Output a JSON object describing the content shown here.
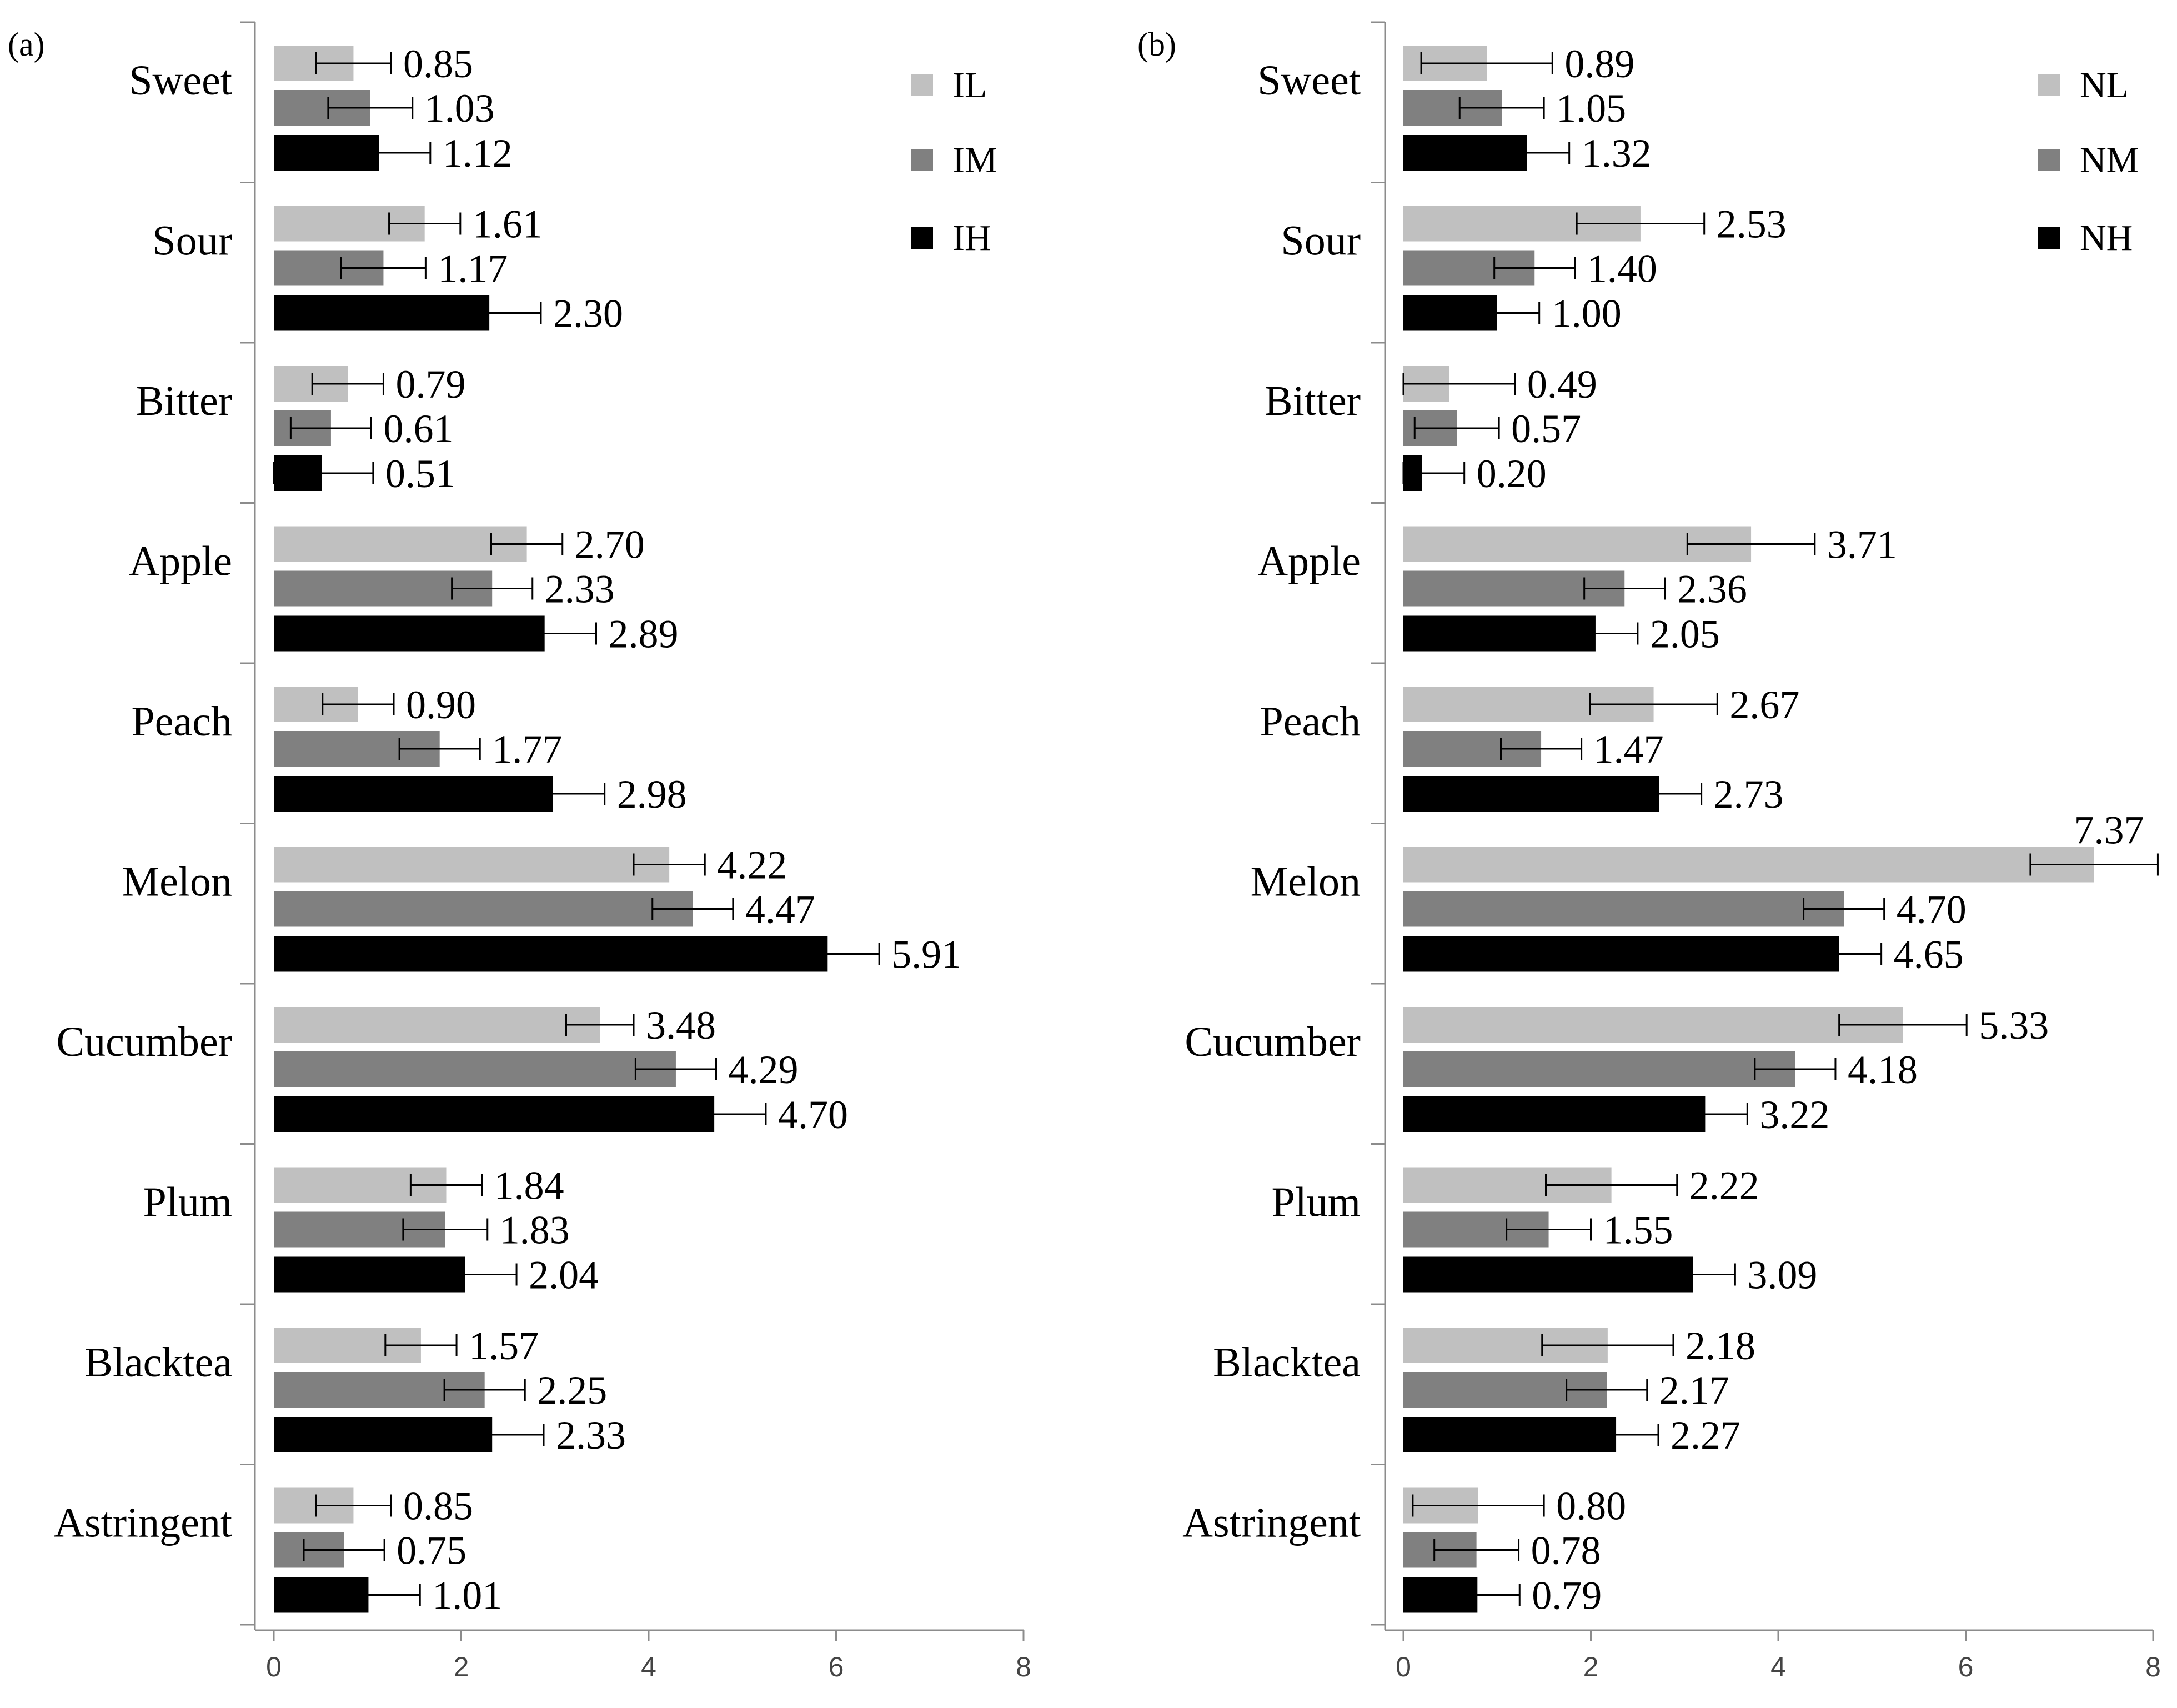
{
  "chart_data": [
    {
      "type": "bar",
      "orientation": "horizontal",
      "panel_label": "(a)",
      "categories": [
        "Sweet",
        "Sour",
        "Bitter",
        "Apple",
        "Peach",
        "Melon",
        "Cucumber",
        "Plum",
        "Blacktea",
        "Astringent"
      ],
      "series": [
        {
          "name": "IL",
          "color": "#c0c0c0",
          "values": [
            0.85,
            1.61,
            0.79,
            2.7,
            0.9,
            4.22,
            3.48,
            1.84,
            1.57,
            0.85
          ],
          "errors": [
            0.4,
            0.38,
            0.38,
            0.38,
            0.38,
            0.38,
            0.36,
            0.38,
            0.38,
            0.4
          ],
          "labels": [
            "0.85",
            "1.61",
            "0.79",
            "2.70",
            "0.90",
            "4.22",
            "3.48",
            "1.84",
            "1.57",
            "0.85"
          ]
        },
        {
          "name": "IM",
          "color": "#808080",
          "values": [
            1.03,
            1.17,
            0.61,
            2.33,
            1.77,
            4.47,
            4.29,
            1.83,
            2.25,
            0.75
          ],
          "errors": [
            0.45,
            0.45,
            0.43,
            0.43,
            0.43,
            0.43,
            0.43,
            0.45,
            0.43,
            0.43
          ],
          "labels": [
            "1.03",
            "1.17",
            "0.61",
            "2.33",
            "1.77",
            "4.47",
            "4.29",
            "1.83",
            "2.25",
            "0.75"
          ]
        },
        {
          "name": "IH",
          "color": "#000000",
          "values": [
            1.12,
            2.3,
            0.51,
            2.89,
            2.98,
            5.91,
            4.7,
            2.04,
            2.33,
            1.01
          ],
          "errors": [
            0.55,
            0.55,
            0.55,
            0.55,
            0.55,
            0.55,
            0.55,
            0.55,
            0.55,
            0.55
          ],
          "labels": [
            "1.12",
            "2.30",
            "0.51",
            "2.89",
            "2.98",
            "5.91",
            "4.70",
            "2.04",
            "2.33",
            "1.01"
          ]
        }
      ],
      "xlim": [
        0,
        8
      ],
      "xticks": [
        "0",
        "2",
        "4",
        "6",
        "8"
      ],
      "legend_position": "top-right"
    },
    {
      "type": "bar",
      "orientation": "horizontal",
      "panel_label": "(b)",
      "categories": [
        "Sweet",
        "Sour",
        "Bitter",
        "Apple",
        "Peach",
        "Melon",
        "Cucumber",
        "Plum",
        "Blacktea",
        "Astringent"
      ],
      "series": [
        {
          "name": "NL",
          "color": "#c0c0c0",
          "values": [
            0.89,
            2.53,
            0.49,
            3.71,
            2.67,
            7.37,
            5.33,
            2.22,
            2.18,
            0.8
          ],
          "errors": [
            0.7,
            0.68,
            0.7,
            0.68,
            0.68,
            0.68,
            0.68,
            0.7,
            0.7,
            0.7
          ],
          "labels": [
            "0.89",
            "2.53",
            "0.49",
            "3.71",
            "2.67",
            "7.37",
            "5.33",
            "2.22",
            "2.18",
            "0.80"
          ]
        },
        {
          "name": "NM",
          "color": "#808080",
          "values": [
            1.05,
            1.4,
            0.57,
            2.36,
            1.47,
            4.7,
            4.18,
            1.55,
            2.17,
            0.78
          ],
          "errors": [
            0.45,
            0.43,
            0.45,
            0.43,
            0.43,
            0.43,
            0.43,
            0.45,
            0.43,
            0.45
          ],
          "labels": [
            "1.05",
            "1.40",
            "0.57",
            "2.36",
            "1.47",
            "4.70",
            "4.18",
            "1.55",
            "2.17",
            "0.78"
          ]
        },
        {
          "name": "NH",
          "color": "#000000",
          "values": [
            1.32,
            1.0,
            0.2,
            2.05,
            2.73,
            4.65,
            3.22,
            3.09,
            2.27,
            0.79
          ],
          "errors": [
            0.45,
            0.45,
            0.45,
            0.45,
            0.45,
            0.45,
            0.45,
            0.45,
            0.45,
            0.45
          ],
          "labels": [
            "1.32",
            "1.00",
            "0.20",
            "2.05",
            "2.73",
            "4.65",
            "3.22",
            "3.09",
            "2.27",
            "0.79"
          ]
        }
      ],
      "xlim": [
        0,
        8
      ],
      "xticks": [
        "0",
        "2",
        "4",
        "6",
        "8"
      ],
      "legend_position": "top-right"
    }
  ]
}
